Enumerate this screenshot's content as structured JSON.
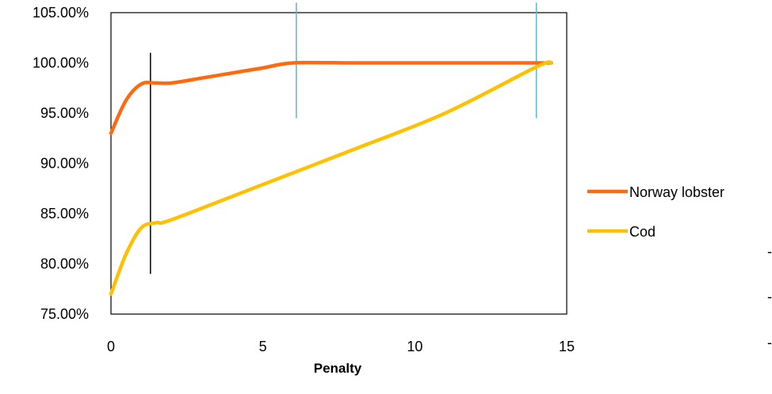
{
  "chart_data": {
    "type": "line",
    "xlabel": "Penalty",
    "ylabel": "",
    "xlim": [
      0,
      15
    ],
    "ylim": [
      75,
      105
    ],
    "x_ticks": [
      0,
      5,
      10,
      15
    ],
    "y_ticks": [
      75,
      80,
      85,
      90,
      95,
      100,
      105
    ],
    "x_tick_labels": [
      "0",
      "5",
      "10",
      "15"
    ],
    "y_tick_labels": [
      "75.00%",
      "80.00%",
      "85.00%",
      "90.00%",
      "95.00%",
      "100.00%",
      "105.00%"
    ],
    "grid": false,
    "legend_position": "right",
    "series": [
      {
        "name": "Norway lobster",
        "color": "#ff6a10",
        "points": [
          [
            0,
            93.0
          ],
          [
            0.5,
            96.3
          ],
          [
            1.0,
            97.9
          ],
          [
            1.5,
            98.0
          ],
          [
            2.0,
            98.0
          ],
          [
            3.0,
            98.5
          ],
          [
            4.0,
            99.0
          ],
          [
            5.0,
            99.5
          ],
          [
            6.0,
            100.0
          ],
          [
            8.0,
            100.0
          ],
          [
            10.0,
            100.0
          ],
          [
            12.0,
            100.0
          ],
          [
            14.5,
            100.0
          ]
        ]
      },
      {
        "name": "Cod",
        "color": "#ffc000",
        "points": [
          [
            0,
            77.0
          ],
          [
            0.5,
            81.0
          ],
          [
            1.0,
            83.6
          ],
          [
            1.5,
            84.1
          ],
          [
            2.0,
            84.4
          ],
          [
            5.0,
            87.9
          ],
          [
            8.0,
            91.4
          ],
          [
            11.0,
            95.0
          ],
          [
            14.0,
            99.6
          ],
          [
            14.5,
            100.0
          ]
        ]
      }
    ],
    "markers": [
      {
        "kind": "vertical-line",
        "x": 1.3,
        "y_range": [
          79,
          101
        ],
        "color": "#000000"
      },
      {
        "kind": "vertical-line",
        "x": 6.1,
        "y_range": [
          94.5,
          106
        ],
        "color": "#5ab4d6"
      },
      {
        "kind": "vertical-line",
        "x": 14.0,
        "y_range": [
          94.5,
          106
        ],
        "color": "#5ab4d6"
      }
    ],
    "legend_extra": [
      "-",
      "-",
      "-"
    ],
    "colors": {
      "plot_border": "#000000",
      "background": "#ffffff"
    }
  }
}
